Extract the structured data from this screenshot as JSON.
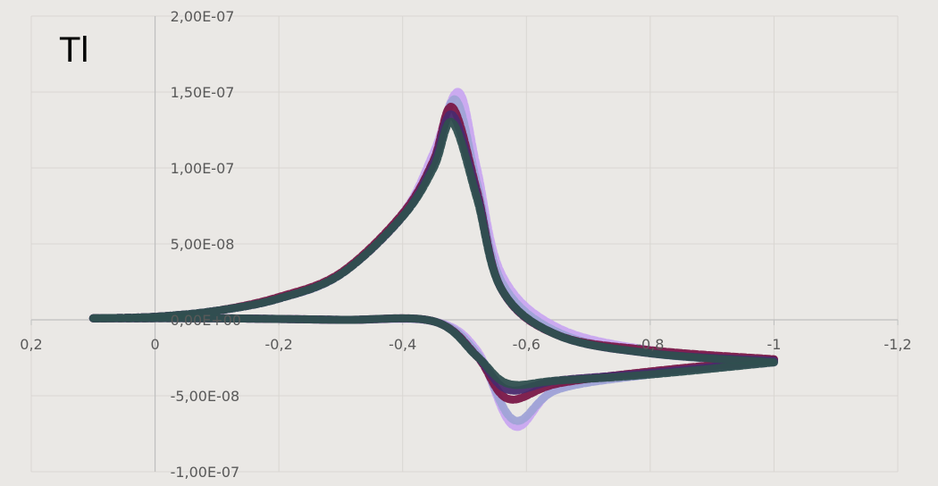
{
  "chart_data": {
    "type": "line",
    "title": "Tl",
    "xlabel": "",
    "ylabel": "",
    "x_reversed": true,
    "xlim": [
      0.2,
      -1.2
    ],
    "ylim": [
      -1e-07,
      2e-07
    ],
    "x_ticks": [
      0.2,
      0,
      -0.2,
      -0.4,
      -0.6,
      -0.8,
      -1,
      -1.2
    ],
    "x_tick_labels": [
      "0,2",
      "0",
      "-0,2",
      "-0,4",
      "-0,6",
      "-0,8",
      "-1",
      "-1,2"
    ],
    "y_ticks": [
      2e-07,
      1.5e-07,
      1e-07,
      5e-08,
      0,
      -5e-08,
      -1e-07
    ],
    "y_tick_labels": [
      "2,00E-07",
      "1,50E-07",
      "1,00E-07",
      "5,00E-08",
      "0,00E+00",
      "-5,00E-08",
      "-1,00E-07"
    ],
    "grid": true,
    "legend": "none",
    "series": [
      {
        "color": "#c9a6f0",
        "values_forward": [
          [
            0.1,
            1e-09
          ],
          [
            0,
            2e-09
          ],
          [
            -0.1,
            6e-09
          ],
          [
            -0.2,
            1.4e-08
          ],
          [
            -0.3,
            3e-08
          ],
          [
            -0.4,
            7e-08
          ],
          [
            -0.45,
            1.1e-07
          ],
          [
            -0.49,
            1.5e-07
          ],
          [
            -0.52,
            1e-07
          ],
          [
            -0.56,
            3e-08
          ],
          [
            -0.65,
            -5e-09
          ],
          [
            -0.8,
            -2e-08
          ],
          [
            -1.0,
            -2.8e-08
          ]
        ],
        "values_reverse": [
          [
            -1.0,
            -2.8e-08
          ],
          [
            -0.8,
            -3.5e-08
          ],
          [
            -0.65,
            -4.5e-08
          ],
          [
            -0.58,
            -7e-08
          ],
          [
            -0.52,
            -2e-08
          ],
          [
            -0.45,
            -1e-09
          ],
          [
            -0.3,
            0
          ],
          [
            -0.1,
            1e-09
          ],
          [
            0.1,
            1e-09
          ]
        ]
      },
      {
        "color": "#9fa3d6",
        "values_forward": [
          [
            0.1,
            1e-09
          ],
          [
            0,
            2e-09
          ],
          [
            -0.1,
            6e-09
          ],
          [
            -0.2,
            1.4e-08
          ],
          [
            -0.3,
            3e-08
          ],
          [
            -0.4,
            7e-08
          ],
          [
            -0.45,
            1.05e-07
          ],
          [
            -0.485,
            1.45e-07
          ],
          [
            -0.52,
            9e-08
          ],
          [
            -0.56,
            2.5e-08
          ],
          [
            -0.65,
            -8e-09
          ],
          [
            -0.8,
            -2.2e-08
          ],
          [
            -1.0,
            -2.8e-08
          ]
        ],
        "values_reverse": [
          [
            -1.0,
            -2.8e-08
          ],
          [
            -0.8,
            -3.6e-08
          ],
          [
            -0.65,
            -4.6e-08
          ],
          [
            -0.58,
            -6.6e-08
          ],
          [
            -0.52,
            -2.2e-08
          ],
          [
            -0.45,
            -1e-09
          ],
          [
            -0.3,
            0
          ],
          [
            -0.1,
            1e-09
          ],
          [
            0.1,
            1e-09
          ]
        ]
      },
      {
        "color": "#7a1848",
        "values_forward": [
          [
            0.1,
            1e-09
          ],
          [
            0,
            2e-09
          ],
          [
            -0.1,
            6e-09
          ],
          [
            -0.2,
            1.5e-08
          ],
          [
            -0.3,
            3.1e-08
          ],
          [
            -0.4,
            7e-08
          ],
          [
            -0.45,
            1.05e-07
          ],
          [
            -0.48,
            1.4e-07
          ],
          [
            -0.52,
            8.5e-08
          ],
          [
            -0.56,
            2e-08
          ],
          [
            -0.65,
            -1e-08
          ],
          [
            -0.8,
            -2e-08
          ],
          [
            -1.0,
            -2.6e-08
          ]
        ],
        "values_reverse": [
          [
            -1.0,
            -2.6e-08
          ],
          [
            -0.8,
            -3.4e-08
          ],
          [
            -0.65,
            -4.2e-08
          ],
          [
            -0.57,
            -5.2e-08
          ],
          [
            -0.52,
            -2.4e-08
          ],
          [
            -0.45,
            -1e-09
          ],
          [
            -0.3,
            0
          ],
          [
            -0.1,
            1e-09
          ],
          [
            0.1,
            1e-09
          ]
        ]
      },
      {
        "color": "#4a2a6e",
        "values_forward": [
          [
            0.1,
            1e-09
          ],
          [
            0,
            2e-09
          ],
          [
            -0.1,
            6e-09
          ],
          [
            -0.2,
            1.4e-08
          ],
          [
            -0.3,
            3e-08
          ],
          [
            -0.4,
            6.8e-08
          ],
          [
            -0.45,
            1.03e-07
          ],
          [
            -0.48,
            1.35e-07
          ],
          [
            -0.52,
            8.3e-08
          ],
          [
            -0.56,
            2e-08
          ],
          [
            -0.65,
            -1e-08
          ],
          [
            -0.8,
            -2.2e-08
          ],
          [
            -1.0,
            -2.7e-08
          ]
        ],
        "values_reverse": [
          [
            -1.0,
            -2.7e-08
          ],
          [
            -0.8,
            -3.5e-08
          ],
          [
            -0.65,
            -4e-08
          ],
          [
            -0.57,
            -4.6e-08
          ],
          [
            -0.52,
            -2.4e-08
          ],
          [
            -0.45,
            -1e-09
          ],
          [
            -0.3,
            0
          ],
          [
            -0.1,
            1e-09
          ],
          [
            0.1,
            1e-09
          ]
        ]
      },
      {
        "color": "#2f4f4f",
        "values_forward": [
          [
            0.1,
            1e-09
          ],
          [
            0,
            2e-09
          ],
          [
            -0.1,
            6e-09
          ],
          [
            -0.2,
            1.4e-08
          ],
          [
            -0.3,
            3e-08
          ],
          [
            -0.4,
            6.8e-08
          ],
          [
            -0.45,
            1e-07
          ],
          [
            -0.48,
            1.3e-07
          ],
          [
            -0.52,
            8e-08
          ],
          [
            -0.56,
            2e-08
          ],
          [
            -0.65,
            -1e-08
          ],
          [
            -0.8,
            -2.2e-08
          ],
          [
            -1.0,
            -2.8e-08
          ]
        ],
        "values_reverse": [
          [
            -1.0,
            -2.8e-08
          ],
          [
            -0.8,
            -3.6e-08
          ],
          [
            -0.65,
            -4e-08
          ],
          [
            -0.57,
            -4.2e-08
          ],
          [
            -0.52,
            -2.4e-08
          ],
          [
            -0.45,
            -1e-09
          ],
          [
            -0.3,
            0
          ],
          [
            -0.1,
            1e-09
          ],
          [
            0.1,
            1e-09
          ]
        ]
      }
    ]
  }
}
